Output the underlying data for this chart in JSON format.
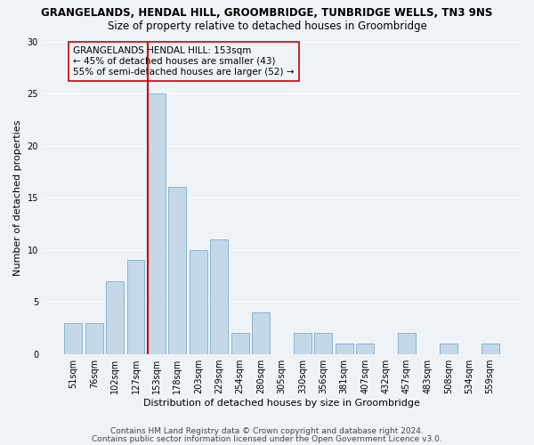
{
  "title1": "GRANGELANDS, HENDAL HILL, GROOMBRIDGE, TUNBRIDGE WELLS, TN3 9NS",
  "title2": "Size of property relative to detached houses in Groombridge",
  "xlabel": "Distribution of detached houses by size in Groombridge",
  "ylabel": "Number of detached properties",
  "categories": [
    "51sqm",
    "76sqm",
    "102sqm",
    "127sqm",
    "153sqm",
    "178sqm",
    "203sqm",
    "229sqm",
    "254sqm",
    "280sqm",
    "305sqm",
    "330sqm",
    "356sqm",
    "381sqm",
    "407sqm",
    "432sqm",
    "457sqm",
    "483sqm",
    "508sqm",
    "534sqm",
    "559sqm"
  ],
  "values": [
    3,
    3,
    7,
    9,
    25,
    16,
    10,
    11,
    2,
    4,
    0,
    2,
    2,
    1,
    1,
    0,
    2,
    0,
    1,
    0,
    1
  ],
  "bar_color": "#c5d8e8",
  "bar_edge_color": "#7aafc8",
  "vline_color": "#cc0000",
  "ylim": [
    0,
    30
  ],
  "yticks": [
    0,
    5,
    10,
    15,
    20,
    25,
    30
  ],
  "annotation_lines": [
    "GRANGELANDS HENDAL HILL: 153sqm",
    "← 45% of detached houses are smaller (43)",
    "55% of semi-detached houses are larger (52) →"
  ],
  "annotation_box_color": "#cc0000",
  "footer1": "Contains HM Land Registry data © Crown copyright and database right 2024.",
  "footer2": "Contains public sector information licensed under the Open Government Licence v3.0.",
  "bg_color": "#eef3f8",
  "grid_color": "#ffffff",
  "title1_fontsize": 8.5,
  "title2_fontsize": 8.5,
  "xlabel_fontsize": 8,
  "ylabel_fontsize": 8,
  "tick_fontsize": 7,
  "annotation_fontsize": 7.5,
  "footer_fontsize": 6.5
}
